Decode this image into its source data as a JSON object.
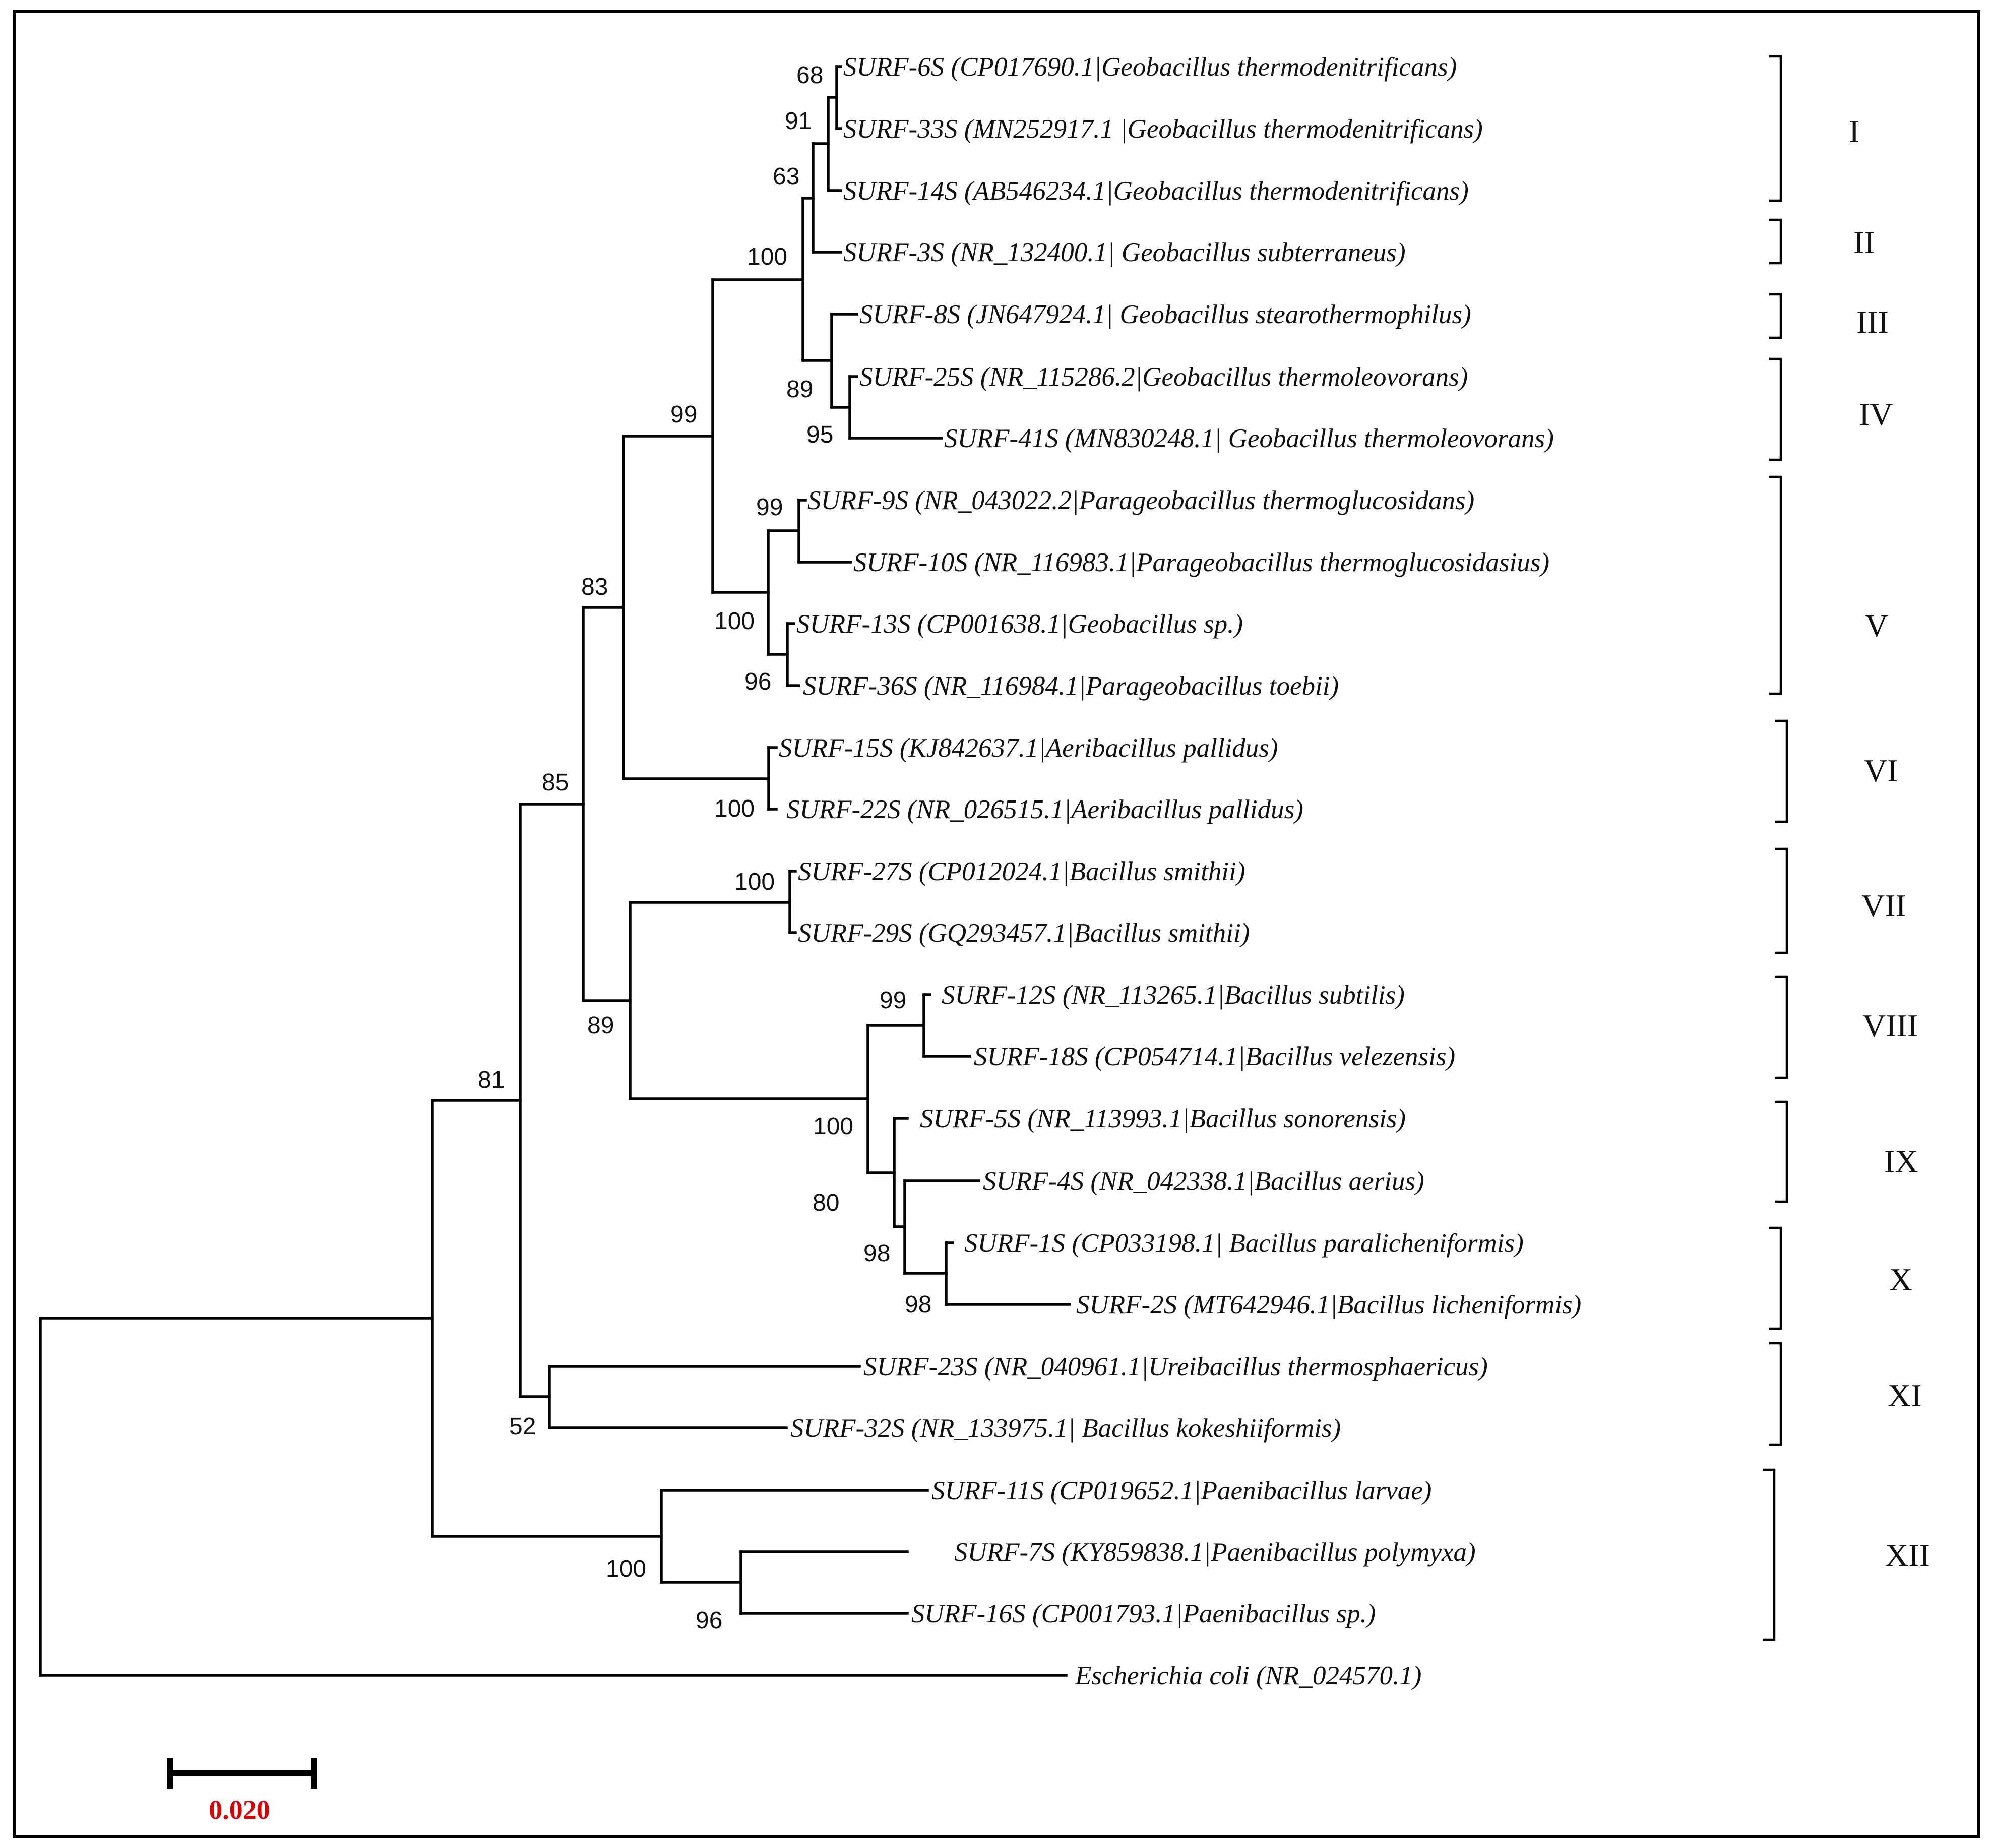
{
  "figure_type": "phylogenetic tree",
  "taxa": [
    "SURF-6S (CP017690.1|Geobacillus thermodenitrificans)",
    "SURF-33S (MN252917.1 |Geobacillus thermodenitrificans)",
    "SURF-14S (AB546234.1|Geobacillus thermodenitrificans)",
    "SURF-3S (NR_132400.1| Geobacillus subterraneus)",
    "SURF-8S (JN647924.1| Geobacillus stearothermophilus)",
    "SURF-25S (NR_115286.2|Geobacillus thermoleovorans)",
    "SURF-41S (MN830248.1| Geobacillus thermoleovorans)",
    "SURF-9S (NR_043022.2|Parageobacillus thermoglucosidans)",
    "SURF-10S (NR_116983.1|Parageobacillus thermoglucosidasius)",
    "SURF-13S (CP001638.1|Geobacillus sp.)",
    "SURF-36S (NR_116984.1|Parageobacillus toebii)",
    "SURF-15S (KJ842637.1|Aeribacillus pallidus)",
    "SURF-22S (NR_026515.1|Aeribacillus pallidus)",
    "SURF-27S (CP012024.1|Bacillus smithii)",
    "SURF-29S (GQ293457.1|Bacillus smithii)",
    "SURF-12S (NR_113265.1|Bacillus subtilis)",
    "SURF-18S (CP054714.1|Bacillus velezensis)",
    "SURF-5S (NR_113993.1|Bacillus sonorensis)",
    "SURF-4S (NR_042338.1|Bacillus aerius)",
    "SURF-1S (CP033198.1| Bacillus paralicheniformis)",
    "SURF-2S (MT642946.1|Bacillus licheniformis)",
    "SURF-23S (NR_040961.1|Ureibacillus thermosphaericus)",
    "SURF-32S (NR_133975.1| Bacillus kokeshiiformis)",
    "SURF-11S (CP019652.1|Paenibacillus larvae)",
    "SURF-7S (KY859838.1|Paenibacillus polymyxa)",
    "SURF-16S (CP001793.1|Paenibacillus sp.)",
    "Escherichia coli (NR_024570.1)"
  ],
  "bootstrap_values": [
    "68",
    "91",
    "63",
    "100",
    "89",
    "95",
    "99",
    "99",
    "100",
    "96",
    "83",
    "100",
    "85",
    "100",
    "89",
    "99",
    "100",
    "80",
    "98",
    "98",
    "81",
    "52",
    "100",
    "96"
  ],
  "clades": [
    "I",
    "II",
    "III",
    "IV",
    "V",
    "VI",
    "VII",
    "VIII",
    "IX",
    "X",
    "XI",
    "XII"
  ],
  "scale_bar_label": "0.020",
  "colors": {
    "lines": "#000000",
    "scale_label": "#e00000"
  }
}
